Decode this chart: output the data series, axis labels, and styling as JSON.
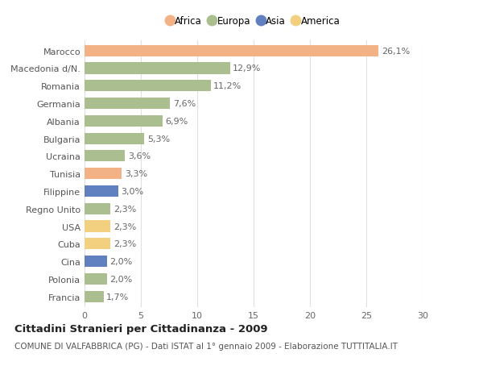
{
  "countries": [
    "Marocco",
    "Macedonia d/N.",
    "Romania",
    "Germania",
    "Albania",
    "Bulgaria",
    "Ucraina",
    "Tunisia",
    "Filippine",
    "Regno Unito",
    "USA",
    "Cuba",
    "Cina",
    "Polonia",
    "Francia"
  ],
  "values": [
    26.1,
    12.9,
    11.2,
    7.6,
    6.9,
    5.3,
    3.6,
    3.3,
    3.0,
    2.3,
    2.3,
    2.3,
    2.0,
    2.0,
    1.7
  ],
  "labels": [
    "26,1%",
    "12,9%",
    "11,2%",
    "7,6%",
    "6,9%",
    "5,3%",
    "3,6%",
    "3,3%",
    "3,0%",
    "2,3%",
    "2,3%",
    "2,3%",
    "2,0%",
    "2,0%",
    "1,7%"
  ],
  "continents": [
    "Africa",
    "Europa",
    "Europa",
    "Europa",
    "Europa",
    "Europa",
    "Europa",
    "Africa",
    "Asia",
    "Europa",
    "America",
    "America",
    "Asia",
    "Europa",
    "Europa"
  ],
  "colors": {
    "Africa": "#F2B285",
    "Europa": "#ABBE90",
    "Asia": "#6080C0",
    "America": "#F2D080"
  },
  "legend_order": [
    "Africa",
    "Europa",
    "Asia",
    "America"
  ],
  "legend_colors": [
    "#F2B285",
    "#ABBE90",
    "#6080C0",
    "#F2D080"
  ],
  "title": "Cittadini Stranieri per Cittadinanza - 2009",
  "subtitle": "COMUNE DI VALFABBRICA (PG) - Dati ISTAT al 1° gennaio 2009 - Elaborazione TUTTITALIA.IT",
  "xlim": [
    0,
    30
  ],
  "xticks": [
    0,
    5,
    10,
    15,
    20,
    25,
    30
  ],
  "bg_color": "#ffffff",
  "grid_color": "#e0e0e0",
  "bar_height": 0.65,
  "label_fontsize": 8,
  "tick_fontsize": 8,
  "title_fontsize": 9.5,
  "subtitle_fontsize": 7.5
}
